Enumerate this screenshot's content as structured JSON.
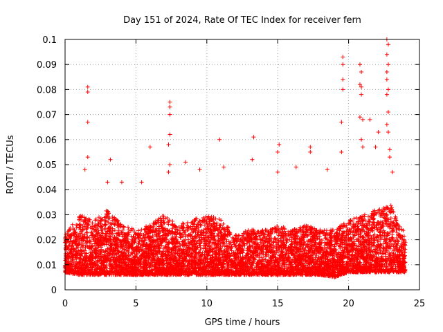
{
  "chart_data": {
    "type": "scatter",
    "title": "Day 151 of 2024, Rate Of TEC Index for receiver fern",
    "xlabel": "GPS time / hours",
    "ylabel": "ROTI / TECUs",
    "xlim": [
      0,
      25
    ],
    "ylim": [
      0,
      0.1
    ],
    "xticks": [
      "0",
      "5",
      "10",
      "15",
      "20",
      "25"
    ],
    "yticks": [
      "0",
      "0.01",
      "0.02",
      "0.03",
      "0.04",
      "0.05",
      "0.06",
      "0.07",
      "0.08",
      "0.09",
      "0.1"
    ],
    "grid": true,
    "marker": "+",
    "color": "#ff0000",
    "notable_points": [
      {
        "x": 1.6,
        "y": 0.081
      },
      {
        "x": 1.6,
        "y": 0.079
      },
      {
        "x": 1.6,
        "y": 0.067
      },
      {
        "x": 1.6,
        "y": 0.053
      },
      {
        "x": 1.4,
        "y": 0.048
      },
      {
        "x": 3.2,
        "y": 0.052
      },
      {
        "x": 3.0,
        "y": 0.043
      },
      {
        "x": 4.0,
        "y": 0.043
      },
      {
        "x": 5.4,
        "y": 0.043
      },
      {
        "x": 6.0,
        "y": 0.057
      },
      {
        "x": 7.4,
        "y": 0.075
      },
      {
        "x": 7.4,
        "y": 0.073
      },
      {
        "x": 7.4,
        "y": 0.07
      },
      {
        "x": 7.4,
        "y": 0.062
      },
      {
        "x": 7.3,
        "y": 0.058
      },
      {
        "x": 7.4,
        "y": 0.05
      },
      {
        "x": 7.3,
        "y": 0.047
      },
      {
        "x": 8.5,
        "y": 0.051
      },
      {
        "x": 9.5,
        "y": 0.048
      },
      {
        "x": 10.9,
        "y": 0.06
      },
      {
        "x": 11.2,
        "y": 0.049
      },
      {
        "x": 13.3,
        "y": 0.061
      },
      {
        "x": 13.2,
        "y": 0.052
      },
      {
        "x": 15.1,
        "y": 0.058
      },
      {
        "x": 15.0,
        "y": 0.055
      },
      {
        "x": 15.0,
        "y": 0.047
      },
      {
        "x": 16.3,
        "y": 0.049
      },
      {
        "x": 17.3,
        "y": 0.057
      },
      {
        "x": 17.3,
        "y": 0.055
      },
      {
        "x": 18.5,
        "y": 0.048
      },
      {
        "x": 19.5,
        "y": 0.055
      },
      {
        "x": 19.6,
        "y": 0.093
      },
      {
        "x": 19.6,
        "y": 0.09
      },
      {
        "x": 19.6,
        "y": 0.084
      },
      {
        "x": 19.6,
        "y": 0.08
      },
      {
        "x": 19.5,
        "y": 0.067
      },
      {
        "x": 20.8,
        "y": 0.09
      },
      {
        "x": 20.9,
        "y": 0.087
      },
      {
        "x": 20.8,
        "y": 0.082
      },
      {
        "x": 20.9,
        "y": 0.081
      },
      {
        "x": 20.9,
        "y": 0.078
      },
      {
        "x": 20.8,
        "y": 0.069
      },
      {
        "x": 21.0,
        "y": 0.068
      },
      {
        "x": 21.5,
        "y": 0.068
      },
      {
        "x": 20.9,
        "y": 0.06
      },
      {
        "x": 21.0,
        "y": 0.057
      },
      {
        "x": 22.1,
        "y": 0.063
      },
      {
        "x": 21.9,
        "y": 0.057
      },
      {
        "x": 22.7,
        "y": 0.1
      },
      {
        "x": 22.8,
        "y": 0.098
      },
      {
        "x": 22.7,
        "y": 0.094
      },
      {
        "x": 22.8,
        "y": 0.09
      },
      {
        "x": 22.7,
        "y": 0.087
      },
      {
        "x": 22.7,
        "y": 0.084
      },
      {
        "x": 22.8,
        "y": 0.08
      },
      {
        "x": 22.7,
        "y": 0.078
      },
      {
        "x": 22.8,
        "y": 0.071
      },
      {
        "x": 22.7,
        "y": 0.066
      },
      {
        "x": 22.8,
        "y": 0.063
      },
      {
        "x": 22.9,
        "y": 0.056
      },
      {
        "x": 22.9,
        "y": 0.053
      },
      {
        "x": 23.1,
        "y": 0.047
      }
    ],
    "band_profile": {
      "hours": [
        0,
        1,
        2,
        3,
        4,
        5,
        6,
        7,
        8,
        9,
        10,
        11,
        12,
        13,
        14,
        15,
        16,
        17,
        18,
        19,
        20,
        21,
        22,
        23,
        24
      ],
      "typical_floor": [
        0.007,
        0.006,
        0.006,
        0.006,
        0.006,
        0.006,
        0.006,
        0.006,
        0.006,
        0.006,
        0.006,
        0.006,
        0.006,
        0.006,
        0.006,
        0.006,
        0.006,
        0.006,
        0.006,
        0.005,
        0.007,
        0.007,
        0.007,
        0.007,
        0.007
      ],
      "typical_ceiling": [
        0.022,
        0.03,
        0.028,
        0.032,
        0.026,
        0.024,
        0.026,
        0.03,
        0.026,
        0.028,
        0.03,
        0.028,
        0.022,
        0.024,
        0.024,
        0.026,
        0.024,
        0.026,
        0.024,
        0.024,
        0.028,
        0.03,
        0.032,
        0.034,
        0.022
      ]
    }
  }
}
